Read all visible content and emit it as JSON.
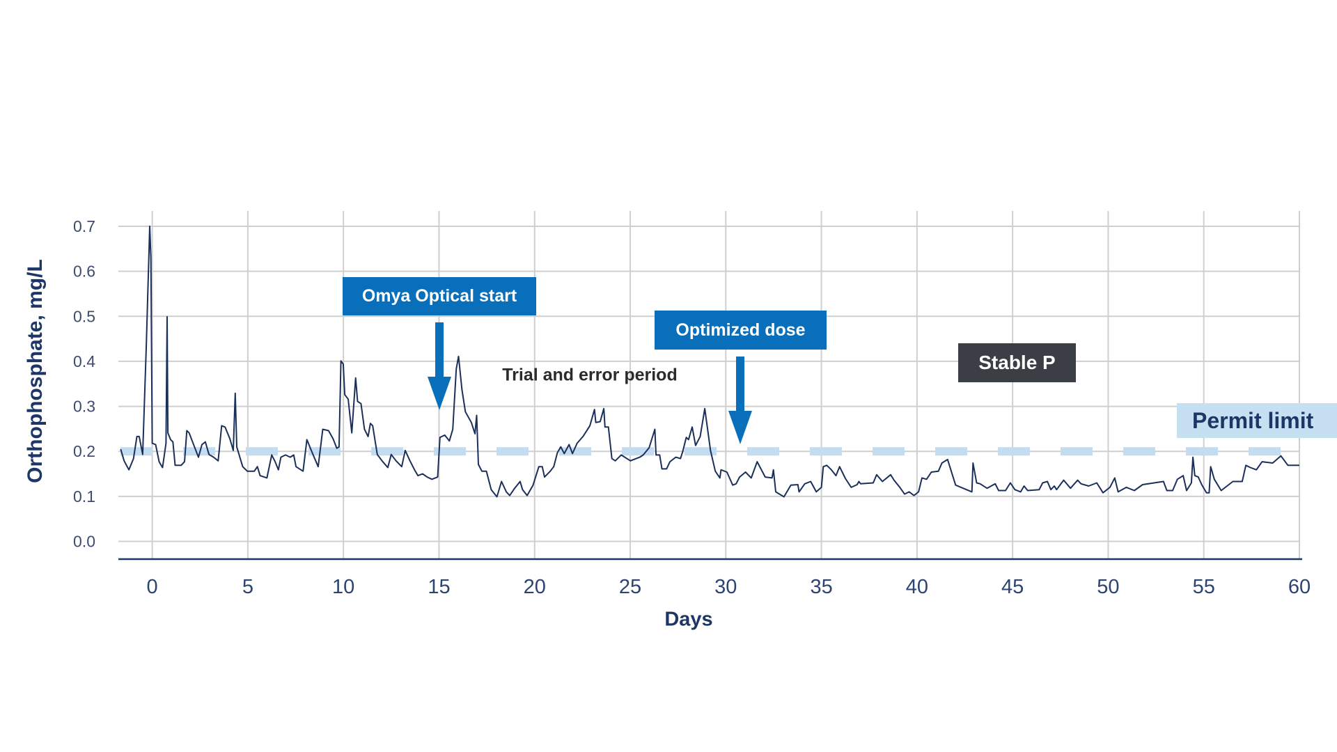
{
  "chart_data": {
    "type": "line",
    "title": "",
    "xlabel": "Days",
    "ylabel": "Orthophosphate, mg/L",
    "xlim": [
      -1.66,
      60
    ],
    "ylim": [
      0,
      0.7
    ],
    "x_ticks": [
      "0",
      "5",
      "10",
      "15",
      "20",
      "25",
      "30",
      "35",
      "40",
      "45",
      "50",
      "55",
      "60"
    ],
    "y_ticks": [
      "0.0",
      "0.1",
      "0.2",
      "0.3",
      "0.4",
      "0.5",
      "0.6",
      "0.7"
    ],
    "grid": true,
    "colors": {
      "series": "#1a2f5a",
      "permit_limit": "#c4dcef",
      "annotation_blue": "#0a6fba",
      "annotation_dark": "#3b3e45",
      "axis_text": "#1c3766"
    },
    "reference_lines": [
      {
        "label": "Permit limit",
        "y": 0.2,
        "style": "dashed"
      }
    ],
    "annotations": {
      "omya_start": "Omya Optical start",
      "trial_period": "Trial and error period",
      "optimized_dose": "Optimized dose",
      "stable_p": "Stable P",
      "permit_limit": "Permit limit"
    },
    "series": [
      {
        "x": [
          -1.65,
          -1.47,
          -1.22,
          -0.98,
          -0.8,
          -0.68,
          -0.5,
          -0.31,
          -0.13,
          -0.07,
          0,
          0.18,
          0.36,
          0.54,
          0.72,
          0.78,
          0.82,
          0.96,
          1.08,
          1.2,
          1.51,
          1.69,
          1.81,
          1.93,
          2.18,
          2.42,
          2.6,
          2.78,
          2.97,
          3.21,
          3.45,
          3.63,
          3.81,
          4.06,
          4.24,
          4.34,
          4.42,
          4.73,
          4.97,
          5.34,
          5.5,
          5.64,
          6.0,
          6.25,
          6.43,
          6.6,
          6.73,
          6.97,
          7.22,
          7.4,
          7.52,
          7.89,
          8.09,
          8.37,
          8.68,
          8.92,
          9.22,
          9.46,
          9.65,
          9.77,
          9.87,
          9.99,
          10.07,
          10.25,
          10.44,
          10.64,
          10.74,
          10.92,
          11.1,
          11.29,
          11.41,
          11.53,
          11.77,
          12.02,
          12.32,
          12.5,
          12.75,
          13.05,
          13.23,
          13.48,
          13.72,
          13.9,
          14.14,
          14.38,
          14.63,
          14.93,
          15.05,
          15.3,
          15.54,
          15.72,
          15.9,
          16.02,
          16.2,
          16.38,
          16.69,
          16.88,
          16.97,
          17.06,
          17.24,
          17.48,
          17.73,
          18.03,
          18.27,
          18.52,
          18.7,
          18.94,
          19.24,
          19.37,
          19.61,
          19.92,
          20.22,
          20.4,
          20.52,
          20.82,
          21.0,
          21.19,
          21.37,
          21.55,
          21.8,
          21.98,
          22.22,
          22.53,
          22.89,
          23.13,
          23.2,
          23.43,
          23.62,
          23.68,
          23.86,
          24.04,
          24.22,
          24.53,
          25.01,
          25.5,
          25.68,
          25.99,
          26.29,
          26.35,
          26.54,
          26.66,
          26.9,
          27.08,
          27.38,
          27.63,
          27.75,
          27.93,
          28.05,
          28.24,
          28.42,
          28.66,
          28.9,
          29.2,
          29.45,
          29.69,
          29.75,
          30.06,
          30.36,
          30.54,
          30.72,
          31.03,
          31.33,
          31.64,
          32.06,
          32.42,
          32.49,
          32.61,
          33.04,
          33.4,
          33.77,
          33.83,
          34.13,
          34.44,
          34.73,
          35.0,
          35.1,
          35.28,
          35.52,
          35.76,
          35.95,
          36.25,
          36.56,
          36.87,
          36.96,
          37.05,
          37.71,
          37.89,
          38.19,
          38.62,
          38.8,
          39.1,
          39.35,
          39.59,
          39.84,
          40.08,
          40.26,
          40.5,
          40.75,
          41.12,
          41.3,
          41.6,
          42.02,
          42.87,
          42.93,
          43.12,
          43.3,
          43.66,
          44.09,
          44.27,
          44.63,
          44.88,
          45.12,
          45.42,
          45.6,
          45.79,
          46.39,
          46.57,
          46.82,
          47.0,
          47.18,
          47.3,
          47.67,
          48.03,
          48.4,
          48.58,
          48.98,
          49.4,
          49.73,
          50.09,
          50.34,
          50.52,
          50.95,
          51.37,
          51.8,
          52.4,
          52.89,
          53.07,
          53.37,
          53.62,
          53.92,
          54.1,
          54.35,
          54.43,
          54.53,
          54.71,
          54.89,
          55.14,
          55.28,
          55.36,
          55.55,
          55.91,
          56.52,
          57.01,
          57.2,
          57.44,
          57.75,
          58.05,
          58.6,
          59.03,
          59.4,
          60.0
        ],
        "y": [
          0.205,
          0.179,
          0.159,
          0.184,
          0.233,
          0.233,
          0.193,
          0.435,
          0.7,
          0.63,
          0.218,
          0.215,
          0.177,
          0.164,
          0.218,
          0.499,
          0.241,
          0.226,
          0.221,
          0.169,
          0.169,
          0.177,
          0.246,
          0.241,
          0.213,
          0.187,
          0.215,
          0.221,
          0.193,
          0.187,
          0.179,
          0.257,
          0.254,
          0.228,
          0.202,
          0.329,
          0.21,
          0.166,
          0.156,
          0.156,
          0.166,
          0.146,
          0.141,
          0.192,
          0.177,
          0.159,
          0.187,
          0.192,
          0.187,
          0.192,
          0.166,
          0.156,
          0.226,
          0.197,
          0.166,
          0.249,
          0.246,
          0.228,
          0.207,
          0.21,
          0.401,
          0.394,
          0.326,
          0.316,
          0.241,
          0.363,
          0.311,
          0.306,
          0.249,
          0.233,
          0.262,
          0.257,
          0.193,
          0.179,
          0.164,
          0.193,
          0.179,
          0.166,
          0.202,
          0.179,
          0.159,
          0.146,
          0.15,
          0.143,
          0.138,
          0.143,
          0.231,
          0.236,
          0.223,
          0.249,
          0.383,
          0.411,
          0.337,
          0.288,
          0.264,
          0.239,
          0.28,
          0.171,
          0.156,
          0.156,
          0.115,
          0.099,
          0.133,
          0.11,
          0.102,
          0.117,
          0.133,
          0.115,
          0.102,
          0.125,
          0.166,
          0.166,
          0.143,
          0.156,
          0.166,
          0.197,
          0.21,
          0.195,
          0.215,
          0.195,
          0.218,
          0.233,
          0.257,
          0.293,
          0.264,
          0.266,
          0.295,
          0.254,
          0.254,
          0.184,
          0.179,
          0.192,
          0.179,
          0.187,
          0.192,
          0.208,
          0.249,
          0.192,
          0.192,
          0.161,
          0.161,
          0.177,
          0.187,
          0.184,
          0.2,
          0.231,
          0.226,
          0.254,
          0.213,
          0.233,
          0.295,
          0.202,
          0.156,
          0.141,
          0.159,
          0.154,
          0.125,
          0.128,
          0.143,
          0.154,
          0.141,
          0.177,
          0.143,
          0.141,
          0.159,
          0.11,
          0.099,
          0.125,
          0.126,
          0.11,
          0.128,
          0.133,
          0.11,
          0.12,
          0.166,
          0.169,
          0.159,
          0.146,
          0.166,
          0.14,
          0.12,
          0.126,
          0.133,
          0.128,
          0.13,
          0.148,
          0.133,
          0.148,
          0.136,
          0.12,
          0.105,
          0.11,
          0.102,
          0.11,
          0.141,
          0.138,
          0.154,
          0.156,
          0.174,
          0.182,
          0.125,
          0.11,
          0.174,
          0.13,
          0.128,
          0.118,
          0.128,
          0.113,
          0.113,
          0.13,
          0.115,
          0.11,
          0.123,
          0.113,
          0.115,
          0.13,
          0.133,
          0.115,
          0.123,
          0.115,
          0.136,
          0.118,
          0.136,
          0.128,
          0.123,
          0.13,
          0.108,
          0.12,
          0.141,
          0.11,
          0.12,
          0.113,
          0.126,
          0.13,
          0.133,
          0.113,
          0.113,
          0.138,
          0.146,
          0.113,
          0.13,
          0.187,
          0.146,
          0.143,
          0.126,
          0.108,
          0.108,
          0.166,
          0.138,
          0.113,
          0.133,
          0.133,
          0.169,
          0.164,
          0.159,
          0.177,
          0.174,
          0.19,
          0.169,
          0.169
        ]
      }
    ]
  }
}
